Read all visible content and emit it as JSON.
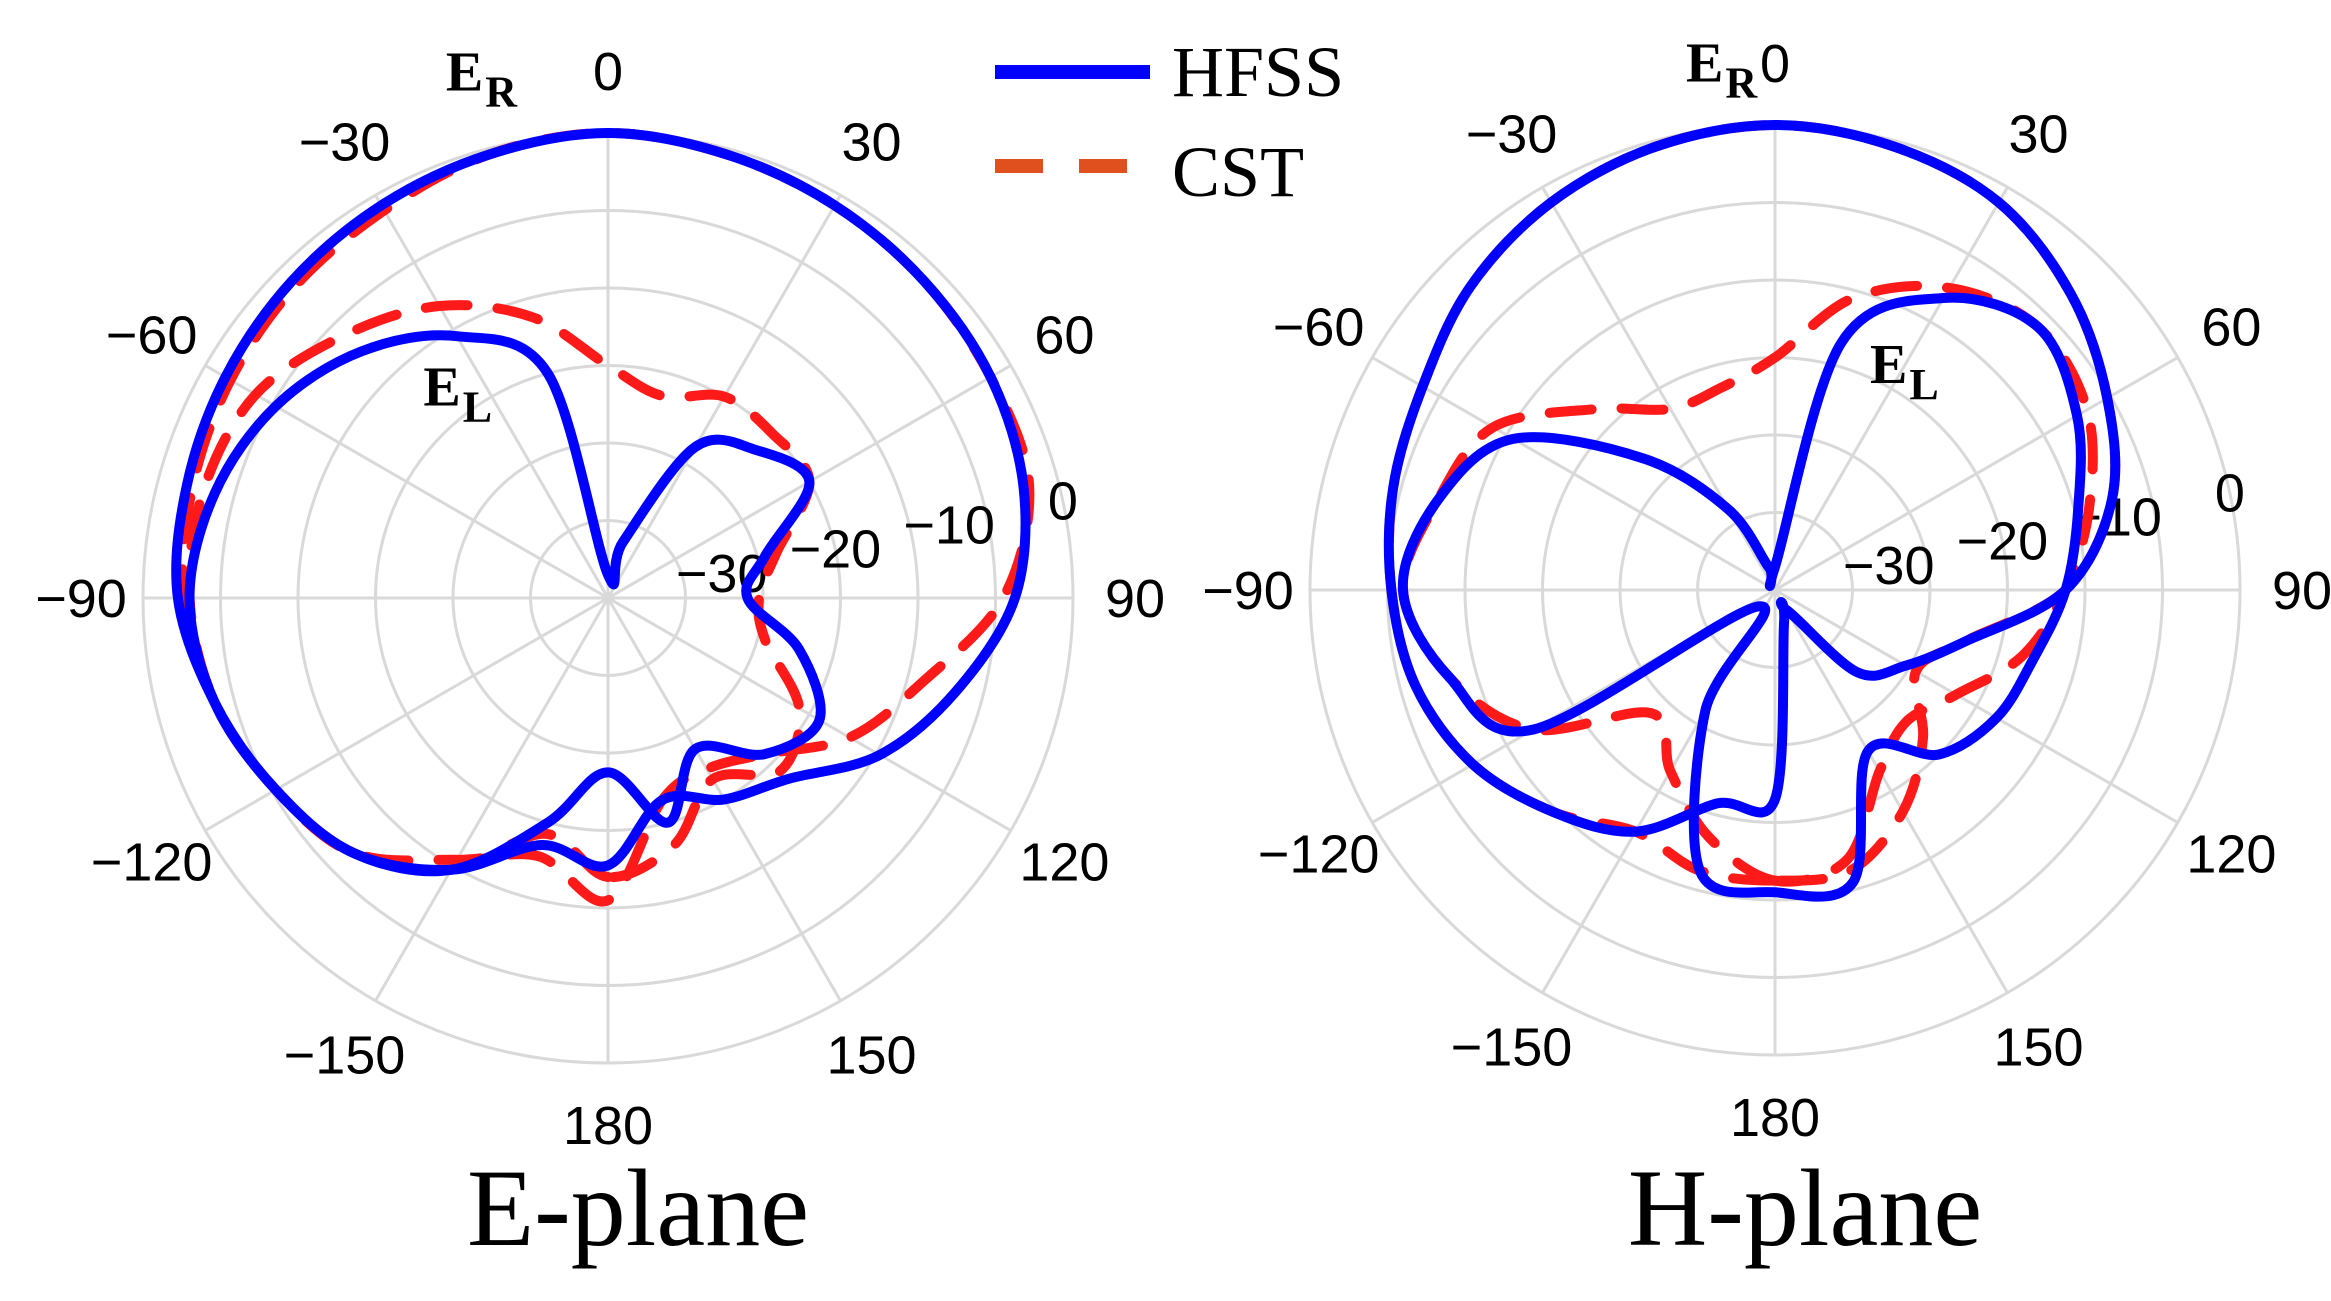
{
  "legend": {
    "entries": [
      {
        "name": "HFSS",
        "color": "#0000ff",
        "dash": "solid"
      },
      {
        "name": "CST",
        "color": "#e0501e",
        "dash": "dashed"
      }
    ]
  },
  "chart_data": [
    {
      "type": "polar-line",
      "title": "E-plane",
      "angle_ticks": [
        "0",
        "30",
        "60",
        "90",
        "120",
        "150",
        "180",
        "−150",
        "−120",
        "−90",
        "−60",
        "−30"
      ],
      "radial_ticks": [
        "−30",
        "−20",
        "−10",
        "0"
      ],
      "rlim": [
        -40,
        0
      ],
      "grid": true,
      "annotations": [
        {
          "main": "E",
          "sub": "R",
          "theta": -14,
          "r": 5
        },
        {
          "main": "E",
          "sub": "L",
          "theta": -38,
          "r": -19
        }
      ],
      "series": [
        {
          "name": "HFSS",
          "curve": "E_R",
          "theta": [
            -180,
            -165,
            -150,
            -135,
            -120,
            -105,
            -90,
            -75,
            -60,
            -45,
            -30,
            -15,
            0,
            15,
            30,
            45,
            60,
            75,
            90,
            105,
            120,
            135,
            150,
            165,
            180
          ],
          "r": [
            -17,
            -18,
            -13,
            -9,
            -7,
            -5,
            -3,
            -2.5,
            -2,
            -1.5,
            -1,
            -0.5,
            0,
            -0.5,
            -1,
            -1.5,
            -2,
            -3,
            -5,
            -9,
            -13,
            -18,
            -20,
            -22,
            -17
          ]
        },
        {
          "name": "HFSS",
          "curve": "E_L",
          "theta": [
            -180,
            -165,
            -150,
            -135,
            -120,
            -105,
            -90,
            -75,
            -60,
            -45,
            -30,
            -15,
            0,
            15,
            30,
            45,
            60,
            75,
            90,
            105,
            120,
            135,
            150,
            165,
            180
          ],
          "r": [
            -25,
            -20,
            -13,
            -9,
            -7,
            -5,
            -4,
            -5,
            -7,
            -10,
            -14,
            -20,
            -38,
            -35,
            -25,
            -22,
            -20,
            -26,
            -28,
            -23,
            -19,
            -21,
            -25,
            -20,
            -25
          ]
        },
        {
          "name": "CST",
          "curve": "E_R",
          "theta": [
            -180,
            -165,
            -150,
            -135,
            -120,
            -105,
            -90,
            -75,
            -60,
            -45,
            -30,
            -15,
            0,
            15,
            30,
            45,
            60,
            75,
            90,
            105,
            120,
            135,
            150,
            165,
            180
          ],
          "r": [
            -14,
            -17,
            -14,
            -9,
            -7,
            -5,
            -3.5,
            -3,
            -2.5,
            -2,
            -1.5,
            -0.5,
            0,
            -0.5,
            -1,
            -1.5,
            -2,
            -2.5,
            -6,
            -12,
            -16,
            -21,
            -23,
            -22,
            -14
          ]
        },
        {
          "name": "CST",
          "curve": "E_L",
          "theta": [
            -180,
            -165,
            -150,
            -135,
            -120,
            -105,
            -90,
            -75,
            -60,
            -45,
            -30,
            -15,
            0,
            15,
            30,
            45,
            60,
            75,
            90,
            105,
            120,
            135,
            150,
            165,
            180
          ],
          "r": [
            -16,
            -19,
            -13,
            -9,
            -7,
            -5,
            -4,
            -4,
            -5,
            -8,
            -11,
            -15,
            -20,
            -22,
            -20,
            -20,
            -20,
            -25,
            -27,
            -26,
            -21,
            -19,
            -22,
            -18,
            -16
          ]
        }
      ]
    },
    {
      "type": "polar-line",
      "title": "H-plane",
      "angle_ticks": [
        "0",
        "30",
        "60",
        "90",
        "120",
        "150",
        "180",
        "−150",
        "−120",
        "−90",
        "−60",
        "−30"
      ],
      "radial_ticks": [
        "−30",
        "−20",
        "−10",
        "0"
      ],
      "rlim": [
        -40,
        0
      ],
      "grid": true,
      "annotations": [
        {
          "main": "E",
          "sub": "R",
          "theta": -6,
          "r": 4
        },
        {
          "main": "E",
          "sub": "L",
          "theta": 32,
          "r": -19
        }
      ],
      "series": [
        {
          "name": "HFSS",
          "curve": "E_R",
          "theta": [
            -180,
            -165,
            -150,
            -135,
            -120,
            -105,
            -90,
            -75,
            -60,
            -45,
            -30,
            -15,
            0,
            15,
            30,
            45,
            60,
            75,
            90,
            105,
            120,
            135,
            150,
            165,
            180
          ],
          "r": [
            -22,
            -21,
            -16,
            -13,
            -10,
            -8,
            -7,
            -6,
            -5,
            -3,
            -1.5,
            -0.5,
            0,
            -0.5,
            -1.5,
            -4,
            -7,
            -10,
            -15,
            -23,
            -27,
            -30,
            -38,
            -37,
            -22
          ]
        },
        {
          "name": "HFSS",
          "curve": "E_L",
          "theta": [
            -180,
            -165,
            -150,
            -135,
            -120,
            -105,
            -90,
            -75,
            -60,
            -45,
            -30,
            -15,
            0,
            15,
            30,
            45,
            60,
            75,
            90,
            105,
            120,
            135,
            150,
            165,
            180
          ],
          "r": [
            -14,
            -15,
            -28,
            -38,
            -16,
            -11,
            -8,
            -10,
            -14,
            -24,
            -32,
            -38,
            -38,
            -18,
            -11,
            -8,
            -10,
            -13,
            -15,
            -17,
            -18,
            -20,
            -24,
            -14,
            -14
          ]
        },
        {
          "name": "CST",
          "curve": "E_R",
          "theta": [
            -180,
            -165,
            -150,
            -135,
            -120,
            -105,
            -90,
            -75,
            -60,
            -45,
            -30,
            -15,
            0,
            15,
            30,
            45,
            60,
            75,
            90,
            105,
            120,
            135,
            150,
            165,
            180
          ],
          "r": [
            -15,
            -15,
            -16,
            -13,
            -10,
            -8,
            -7,
            -6,
            -5,
            -3,
            -1.5,
            -0.5,
            0,
            -0.5,
            -1.5,
            -4,
            -7,
            -10,
            -15,
            -23,
            -26,
            -22,
            -18,
            -15,
            -15
          ]
        },
        {
          "name": "CST",
          "curve": "E_L",
          "theta": [
            -180,
            -165,
            -150,
            -135,
            -120,
            -105,
            -90,
            -75,
            -60,
            -45,
            -30,
            -15,
            0,
            15,
            30,
            45,
            60,
            75,
            90,
            105,
            120,
            135,
            150,
            165,
            180
          ],
          "r": [
            -15,
            -18,
            -22,
            -25,
            -16,
            -11,
            -8,
            -10,
            -12,
            -18,
            -22,
            -22,
            -20,
            -14,
            -10,
            -8,
            -9,
            -12,
            -15,
            -18,
            -22,
            -24,
            -22,
            -16,
            -15
          ]
        }
      ]
    }
  ]
}
